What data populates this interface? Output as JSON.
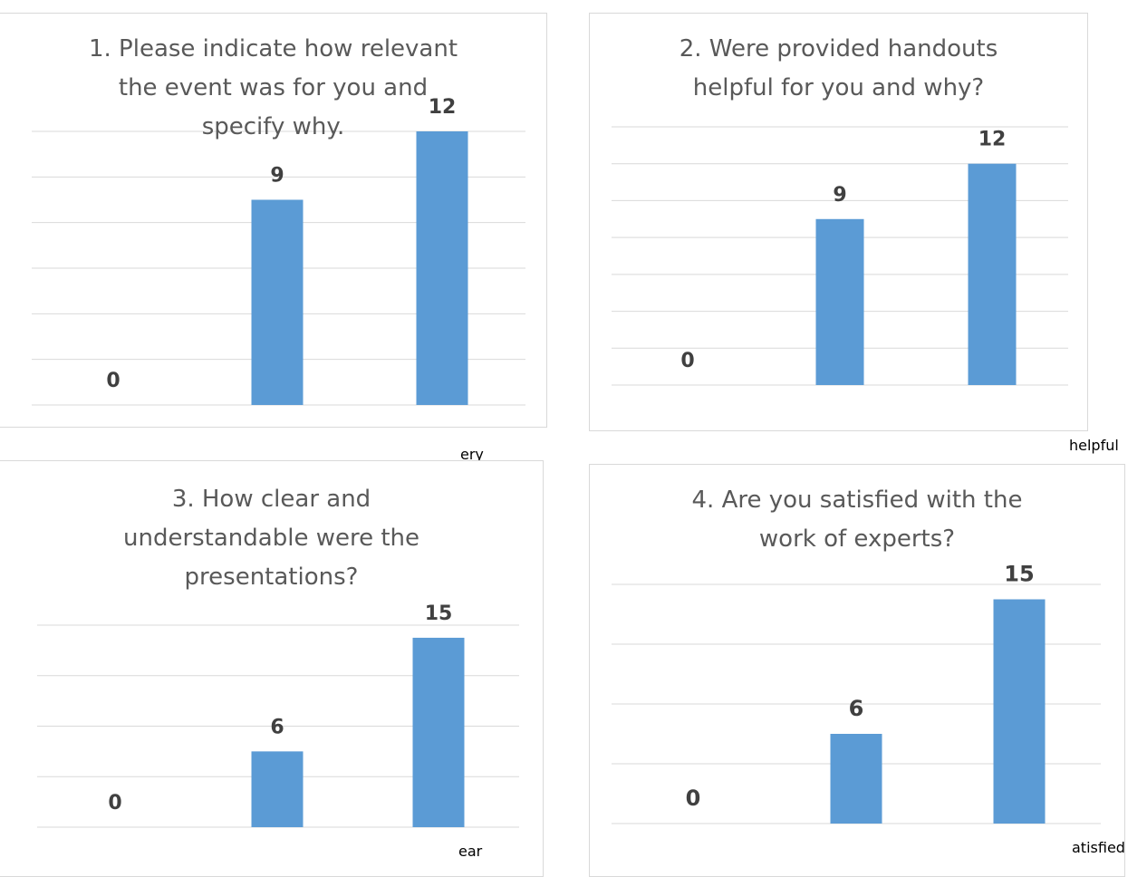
{
  "chart_data": [
    {
      "type": "bar",
      "title": "1. Please indicate how relevant the event was for you and specify why.",
      "values": [
        0,
        9,
        12
      ],
      "visible_category_fragment": "ery",
      "color": "#5b9bd5"
    },
    {
      "type": "bar",
      "title": "2. Were provided handouts helpful for you and why?",
      "values": [
        0,
        9,
        12
      ],
      "visible_category_fragment": "helpful",
      "color": "#5b9bd5"
    },
    {
      "type": "bar",
      "title": "3. How clear and understandable were the presentations?",
      "values": [
        0,
        6,
        15
      ],
      "visible_category_fragment": "ear",
      "color": "#5b9bd5"
    },
    {
      "type": "bar",
      "title": "4. Are you satisfied with the work of experts?",
      "values": [
        0,
        6,
        15
      ],
      "visible_category_fragment": "atisfied",
      "color": "#5b9bd5"
    }
  ]
}
